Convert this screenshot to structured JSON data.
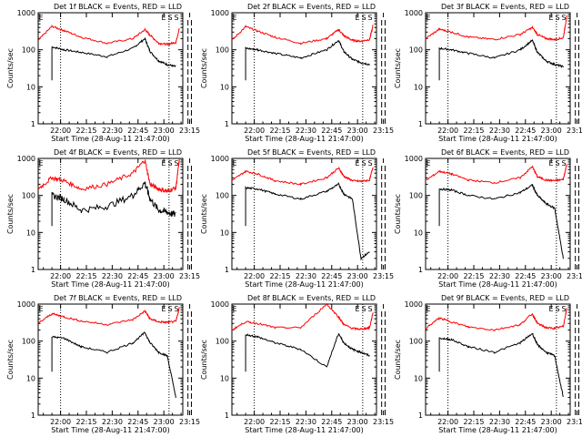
{
  "figure": {
    "xlabel": "Start Time (28-Aug-11 21:47:00)",
    "ylabel": "Counts/sec",
    "x_ticks": [
      "22:00",
      "22:15",
      "22:30",
      "22:45",
      "23:00",
      "23:15"
    ],
    "y_ticks": [
      "1",
      "10",
      "100",
      "1000"
    ],
    "marker_labels": [
      "E",
      "S",
      "S"
    ],
    "colors": {
      "events": "#000000",
      "lld": "#ff0000",
      "background": "#ffffff"
    }
  },
  "chart_data": [
    {
      "type": "line",
      "title": "Det 1f BLACK = Events, RED = LLD",
      "xlabel": "Start Time (28-Aug-11 21:47:00)",
      "ylabel": "Counts/sec",
      "x_unit": "minutes after 21:47:00",
      "x": [
        0,
        8,
        15,
        25,
        40,
        55,
        62,
        65,
        70,
        75,
        80,
        82
      ],
      "series": [
        {
          "name": "Events",
          "values": [
            null,
            120,
            100,
            85,
            65,
            110,
            200,
            90,
            50,
            40,
            35,
            null
          ]
        },
        {
          "name": "LLD",
          "values": [
            180,
            430,
            330,
            220,
            150,
            200,
            350,
            250,
            150,
            140,
            160,
            380
          ]
        }
      ],
      "ylim": [
        1,
        1000
      ],
      "yscale": "log",
      "vlines_dotted": [
        13,
        76
      ],
      "vlines_dashed": [
        84,
        87,
        89
      ]
    },
    {
      "type": "line",
      "title": "Det 2f BLACK = Events, RED = LLD",
      "xlabel": "Start Time (28-Aug-11 21:47:00)",
      "ylabel": "Counts/sec",
      "x_unit": "minutes after 21:47:00",
      "x": [
        0,
        8,
        15,
        25,
        40,
        55,
        62,
        65,
        70,
        75,
        80,
        82
      ],
      "series": [
        {
          "name": "Events",
          "values": [
            null,
            110,
            100,
            80,
            60,
            100,
            180,
            90,
            55,
            45,
            40,
            null
          ]
        },
        {
          "name": "LLD",
          "values": [
            180,
            420,
            320,
            220,
            150,
            200,
            350,
            240,
            180,
            170,
            190,
            450
          ]
        }
      ],
      "ylim": [
        1,
        1000
      ],
      "yscale": "log",
      "vlines_dotted": [
        13,
        76
      ],
      "vlines_dashed": [
        84,
        87,
        89
      ]
    },
    {
      "type": "line",
      "title": "Det 3f BLACK = Events, RED = LLD",
      "xlabel": "Start Time (28-Aug-11 21:47:00)",
      "ylabel": "Counts/sec",
      "x_unit": "minutes after 21:47:00",
      "x": [
        0,
        8,
        15,
        25,
        40,
        55,
        62,
        65,
        70,
        75,
        80,
        82
      ],
      "series": [
        {
          "name": "Events",
          "values": [
            null,
            110,
            100,
            80,
            60,
            100,
            180,
            85,
            50,
            40,
            35,
            null
          ]
        },
        {
          "name": "LLD",
          "values": [
            200,
            360,
            300,
            220,
            190,
            260,
            400,
            260,
            200,
            190,
            210,
            800
          ]
        }
      ],
      "ylim": [
        1,
        1000
      ],
      "yscale": "log",
      "vlines_dotted": [
        13,
        76
      ],
      "vlines_dashed": [
        84,
        87,
        89
      ]
    },
    {
      "type": "line",
      "title": "Det 4f BLACK = Events, RED = LLD",
      "xlabel": "Start Time (28-Aug-11 21:47:00)",
      "ylabel": "Counts/sec",
      "x_unit": "minutes after 21:47:00",
      "x": [
        0,
        8,
        15,
        25,
        40,
        55,
        62,
        65,
        70,
        75,
        80,
        82
      ],
      "series": [
        {
          "name": "Events",
          "values": [
            null,
            100,
            80,
            40,
            50,
            100,
            220,
            80,
            40,
            35,
            30,
            null
          ]
        },
        {
          "name": "LLD",
          "values": [
            150,
            300,
            250,
            150,
            200,
            400,
            900,
            200,
            150,
            130,
            160,
            900
          ]
        }
      ],
      "ylim": [
        1,
        1000
      ],
      "yscale": "log",
      "vlines_dotted": [
        13,
        76
      ],
      "vlines_dashed": [
        84,
        87,
        89
      ]
    },
    {
      "type": "line",
      "title": "Det 5f BLACK = Events, RED = LLD",
      "xlabel": "Start Time (28-Aug-11 21:47:00)",
      "ylabel": "Counts/sec",
      "x_unit": "minutes after 21:47:00",
      "x": [
        0,
        8,
        15,
        25,
        40,
        55,
        62,
        65,
        70,
        75,
        80,
        82
      ],
      "series": [
        {
          "name": "Events",
          "values": [
            null,
            160,
            150,
            110,
            80,
            130,
            200,
            110,
            80,
            2,
            3,
            null
          ]
        },
        {
          "name": "LLD",
          "values": [
            250,
            450,
            380,
            250,
            200,
            300,
            550,
            330,
            250,
            240,
            260,
            600
          ]
        }
      ],
      "ylim": [
        1,
        1000
      ],
      "yscale": "log",
      "vlines_dotted": [
        13,
        76
      ],
      "vlines_dashed": [
        84,
        87,
        89
      ]
    },
    {
      "type": "line",
      "title": "Det 6f BLACK = Events, RED = LLD",
      "xlabel": "Start Time (28-Aug-11 21:47:00)",
      "ylabel": "Counts/sec",
      "x_unit": "minutes after 21:47:00",
      "x": [
        0,
        8,
        15,
        25,
        40,
        55,
        62,
        65,
        70,
        75,
        80,
        82
      ],
      "series": [
        {
          "name": "Events",
          "values": [
            null,
            150,
            140,
            100,
            80,
            120,
            190,
            100,
            60,
            45,
            2,
            null
          ]
        },
        {
          "name": "LLD",
          "values": [
            250,
            450,
            380,
            260,
            220,
            300,
            600,
            320,
            260,
            250,
            270,
            700
          ]
        }
      ],
      "ylim": [
        1,
        1000
      ],
      "yscale": "log",
      "vlines_dotted": [
        13,
        76
      ],
      "vlines_dashed": [
        84,
        87,
        89
      ]
    },
    {
      "type": "line",
      "title": "Det 7f BLACK = Events, RED = LLD",
      "xlabel": "Start Time (28-Aug-11 21:47:00)",
      "ylabel": "Counts/sec",
      "x_unit": "minutes after 21:47:00",
      "x": [
        0,
        8,
        15,
        25,
        40,
        55,
        62,
        65,
        70,
        75,
        80,
        82
      ],
      "series": [
        {
          "name": "Events",
          "values": [
            null,
            130,
            120,
            70,
            50,
            90,
            170,
            90,
            50,
            40,
            3,
            null
          ]
        },
        {
          "name": "LLD",
          "values": [
            300,
            550,
            450,
            350,
            280,
            380,
            650,
            400,
            330,
            320,
            340,
            800
          ]
        }
      ],
      "ylim": [
        1,
        1000
      ],
      "yscale": "log",
      "vlines_dotted": [
        13,
        76
      ],
      "vlines_dashed": [
        84,
        87,
        89
      ]
    },
    {
      "type": "line",
      "title": "Det 8f BLACK = Events, RED = LLD",
      "xlabel": "Start Time (28-Aug-11 21:47:00)",
      "ylabel": "Counts/sec",
      "x_unit": "minutes after 21:47:00",
      "x": [
        0,
        8,
        15,
        25,
        40,
        55,
        62,
        65,
        70,
        75,
        80,
        82
      ],
      "series": [
        {
          "name": "Events",
          "values": [
            null,
            150,
            130,
            90,
            60,
            20,
            160,
            90,
            60,
            50,
            40,
            null
          ]
        },
        {
          "name": "LLD",
          "values": [
            200,
            330,
            300,
            230,
            230,
            1000,
            450,
            280,
            220,
            210,
            230,
            600
          ]
        }
      ],
      "ylim": [
        1,
        1000
      ],
      "yscale": "log",
      "vlines_dotted": [
        13,
        76
      ],
      "vlines_dashed": [
        84,
        87,
        89
      ]
    },
    {
      "type": "line",
      "title": "Det 9f BLACK = Events, RED = LLD",
      "xlabel": "Start Time (28-Aug-11 21:47:00)",
      "ylabel": "Counts/sec",
      "x_unit": "minutes after 21:47:00",
      "x": [
        0,
        8,
        15,
        25,
        40,
        55,
        62,
        65,
        70,
        75,
        80,
        82
      ],
      "series": [
        {
          "name": "Events",
          "values": [
            null,
            120,
            110,
            70,
            50,
            90,
            160,
            80,
            50,
            40,
            3,
            null
          ]
        },
        {
          "name": "LLD",
          "values": [
            220,
            420,
            330,
            240,
            200,
            280,
            550,
            300,
            230,
            220,
            250,
            750
          ]
        }
      ],
      "ylim": [
        1,
        1000
      ],
      "yscale": "log",
      "vlines_dotted": [
        13,
        76
      ],
      "vlines_dashed": [
        84,
        87,
        89
      ]
    }
  ]
}
